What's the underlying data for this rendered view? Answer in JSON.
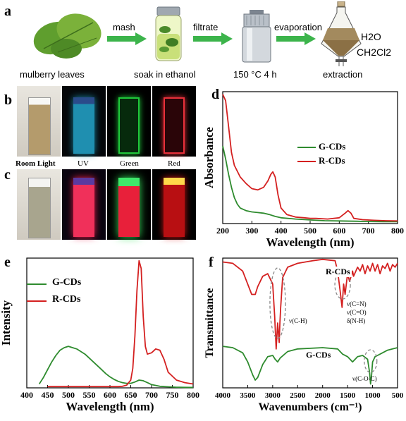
{
  "panel_labels": {
    "a": "a",
    "b": "b",
    "c": "c",
    "d": "d",
    "e": "e",
    "f": "f"
  },
  "process": {
    "steps": [
      {
        "caption": "mulberry leaves"
      },
      {
        "caption": "soak in ethanol"
      },
      {
        "caption": "150 °C 4 h"
      },
      {
        "caption": "extraction"
      }
    ],
    "arrows": [
      "mash",
      "filtrate",
      "evaporation"
    ],
    "funnel_layers": [
      "H2O",
      "CH2Cl2"
    ]
  },
  "cuvettes": {
    "labels": [
      "Room Light",
      "UV",
      "Green",
      "Red"
    ]
  },
  "colors": {
    "green": "#2e8b2e",
    "red": "#d42020",
    "arrow_green": "#3cb44b"
  },
  "chart_data": [
    {
      "id": "d",
      "type": "line",
      "xlabel": "Wavelength (nm)",
      "ylabel": "Absorbance",
      "xlim": [
        200,
        800
      ],
      "xticks": [
        200,
        300,
        400,
        500,
        600,
        700,
        800
      ],
      "legend_placement": "center-right",
      "series": [
        {
          "name": "G-CDs",
          "color": "#2e8b2e",
          "x": [
            200,
            210,
            220,
            230,
            240,
            250,
            260,
            270,
            280,
            300,
            320,
            340,
            360,
            380,
            400,
            450,
            500,
            550,
            600,
            650,
            700,
            750,
            800
          ],
          "y": [
            0.6,
            0.5,
            0.38,
            0.28,
            0.2,
            0.15,
            0.12,
            0.11,
            0.1,
            0.09,
            0.085,
            0.08,
            0.07,
            0.055,
            0.045,
            0.035,
            0.028,
            0.022,
            0.02,
            0.018,
            0.016,
            0.015,
            0.014
          ]
        },
        {
          "name": "R-CDs",
          "color": "#d42020",
          "x": [
            200,
            210,
            220,
            230,
            240,
            260,
            280,
            300,
            320,
            340,
            355,
            365,
            372,
            380,
            390,
            400,
            420,
            450,
            480,
            500,
            520,
            560,
            600,
            620,
            630,
            640,
            650,
            680,
            720,
            760,
            800
          ],
          "y": [
            1.0,
            0.95,
            0.75,
            0.55,
            0.45,
            0.36,
            0.31,
            0.27,
            0.26,
            0.28,
            0.33,
            0.38,
            0.4,
            0.36,
            0.22,
            0.12,
            0.07,
            0.05,
            0.045,
            0.04,
            0.04,
            0.035,
            0.045,
            0.08,
            0.1,
            0.08,
            0.04,
            0.03,
            0.025,
            0.022,
            0.02
          ]
        }
      ]
    },
    {
      "id": "e",
      "type": "line",
      "xlabel": "Wavelength (nm)",
      "ylabel": "Intensity",
      "xlim": [
        400,
        800
      ],
      "xticks": [
        400,
        450,
        500,
        550,
        600,
        650,
        700,
        750,
        800
      ],
      "legend_placement": "top-left",
      "series": [
        {
          "name": "G-CDs",
          "color": "#2e8b2e",
          "x": [
            430,
            440,
            450,
            460,
            470,
            480,
            490,
            500,
            510,
            520,
            530,
            540,
            550,
            560,
            570,
            580,
            590,
            600,
            610,
            620,
            630,
            640,
            650,
            660,
            670,
            680,
            690,
            700,
            720,
            740,
            760,
            780,
            800
          ],
          "y": [
            0.03,
            0.08,
            0.14,
            0.2,
            0.25,
            0.29,
            0.31,
            0.32,
            0.31,
            0.3,
            0.28,
            0.26,
            0.23,
            0.2,
            0.17,
            0.14,
            0.11,
            0.085,
            0.065,
            0.05,
            0.04,
            0.035,
            0.035,
            0.045,
            0.06,
            0.055,
            0.04,
            0.025,
            0.012,
            0.008,
            0.005,
            0.004,
            0.003
          ]
        },
        {
          "name": "R-CDs",
          "color": "#d42020",
          "x": [
            450,
            500,
            550,
            600,
            620,
            630,
            640,
            650,
            655,
            660,
            665,
            670,
            675,
            680,
            685,
            690,
            700,
            710,
            720,
            730,
            740,
            760,
            780,
            800
          ],
          "y": [
            0.01,
            0.01,
            0.01,
            0.01,
            0.01,
            0.012,
            0.02,
            0.06,
            0.15,
            0.4,
            0.75,
            0.98,
            0.92,
            0.55,
            0.32,
            0.26,
            0.27,
            0.3,
            0.29,
            0.22,
            0.12,
            0.06,
            0.04,
            0.03
          ]
        }
      ]
    },
    {
      "id": "f",
      "type": "line",
      "xlabel": "Wavenumbers (cm⁻¹)",
      "ylabel": "Transmittance",
      "xlim": [
        4000,
        500
      ],
      "xticks": [
        4000,
        3500,
        3000,
        2500,
        2000,
        1500,
        1000,
        500
      ],
      "series": [
        {
          "name": "R-CDs",
          "color": "#d42020",
          "x": [
            4000,
            3800,
            3600,
            3500,
            3420,
            3350,
            3300,
            3200,
            3100,
            3000,
            2960,
            2930,
            2900,
            2870,
            2855,
            2840,
            2800,
            2700,
            2500,
            2200,
            2000,
            1750,
            1700,
            1650,
            1610,
            1580,
            1550,
            1500,
            1460,
            1400,
            1380,
            1300,
            1250,
            1200,
            1150,
            1100,
            1050,
            1000,
            950,
            900,
            850,
            800,
            750,
            700,
            650,
            600,
            550,
            500
          ],
          "y": [
            0.97,
            0.96,
            0.9,
            0.8,
            0.72,
            0.72,
            0.78,
            0.86,
            0.88,
            0.8,
            0.55,
            0.3,
            0.5,
            0.35,
            0.5,
            0.62,
            0.85,
            0.93,
            0.96,
            0.98,
            0.99,
            0.98,
            0.9,
            0.75,
            0.62,
            0.8,
            0.72,
            0.88,
            0.82,
            0.9,
            0.86,
            0.93,
            0.9,
            0.95,
            0.88,
            0.94,
            0.9,
            0.96,
            0.9,
            0.95,
            0.88,
            0.94,
            0.92,
            0.96,
            0.9,
            0.95,
            0.93,
            0.96
          ]
        },
        {
          "name": "G-CDs",
          "color": "#2e8b2e",
          "x": [
            4000,
            3800,
            3600,
            3500,
            3400,
            3350,
            3300,
            3200,
            3100,
            3000,
            2950,
            2900,
            2850,
            2700,
            2500,
            2000,
            1700,
            1600,
            1500,
            1450,
            1400,
            1300,
            1200,
            1100,
            1060,
            1040,
            1020,
            1000,
            950,
            900,
            800,
            700,
            600,
            500
          ],
          "y": [
            0.32,
            0.31,
            0.27,
            0.2,
            0.1,
            0.06,
            0.08,
            0.18,
            0.24,
            0.25,
            0.22,
            0.2,
            0.23,
            0.28,
            0.3,
            0.31,
            0.3,
            0.26,
            0.24,
            0.22,
            0.2,
            0.24,
            0.25,
            0.22,
            0.12,
            0.03,
            0.1,
            0.2,
            0.24,
            0.25,
            0.27,
            0.29,
            0.3,
            0.31
          ]
        }
      ]
    }
  ],
  "annotations_d": {
    "g": "G-CDs",
    "r": "R-CDs"
  },
  "annotations_e": {
    "g": "G-CDs",
    "r": "R-CDs"
  },
  "annotations_f": {
    "r": "R-CDs",
    "g": "G-CDs",
    "ch": "ν(C-H)",
    "cn": "ν(C=N)",
    "co": "ν(C=O)",
    "nh": "δ(N-H)",
    "coc": "ν(C-O-C)"
  }
}
